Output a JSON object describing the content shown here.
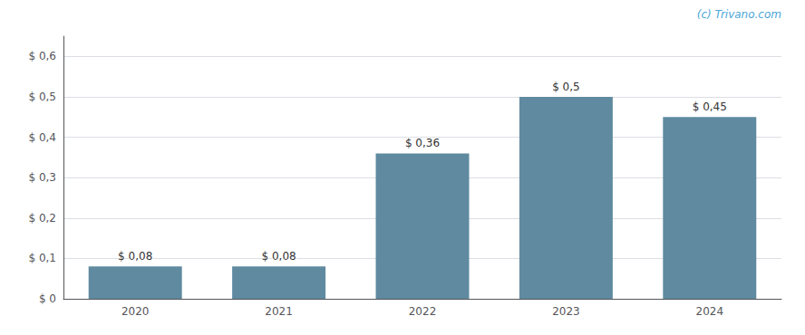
{
  "chart_data": {
    "type": "bar",
    "categories": [
      "2020",
      "2021",
      "2022",
      "2023",
      "2024"
    ],
    "values": [
      0.08,
      0.08,
      0.36,
      0.5,
      0.45
    ],
    "value_labels": [
      "$ 0,08",
      "$ 0,08",
      "$ 0,36",
      "$ 0,5",
      "$ 0,45"
    ],
    "data_labels": true,
    "color": "#5f8aa0",
    "ylim": [
      0,
      0.65
    ],
    "yticks": [
      {
        "value": 0.0,
        "label": "$ 0"
      },
      {
        "value": 0.1,
        "label": "$ 0,1"
      },
      {
        "value": 0.2,
        "label": "$ 0,2"
      },
      {
        "value": 0.3,
        "label": "$ 0,3"
      },
      {
        "value": 0.4,
        "label": "$ 0,4"
      },
      {
        "value": 0.5,
        "label": "$ 0,5"
      },
      {
        "value": 0.6,
        "label": "$ 0,6"
      }
    ],
    "grid": true,
    "annotations": [
      "(c) Trivano.com"
    ]
  }
}
